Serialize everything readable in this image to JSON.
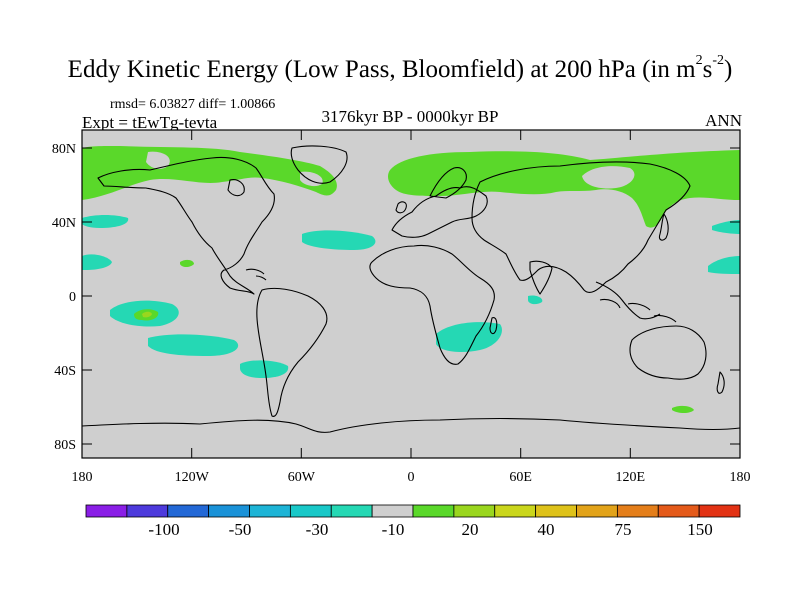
{
  "header": {
    "title_main": "Eddy Kinetic Energy (Low Pass, Bloomfield) at 200 hPa (in m",
    "title_sup1": "2",
    "title_mid": "s",
    "title_sup2": "-2",
    "title_end": ")",
    "stats": "rmsd= 6.03827 diff= 1.00866",
    "experiment": "Expt = tEwTg-tevta",
    "period": "3176kyr BP - 0000kyr BP",
    "season": "ANN"
  },
  "axes": {
    "lat_labels": [
      "80N",
      "40N",
      "0",
      "40S",
      "80S"
    ],
    "lon_labels": [
      "180",
      "120W",
      "60W",
      "0",
      "60E",
      "120E",
      "180"
    ]
  },
  "colorbar": {
    "labels": [
      "-100",
      "-50",
      "-30",
      "-10",
      "20",
      "40",
      "75",
      "150"
    ],
    "colors": [
      "#8a1ee6",
      "#4d3adc",
      "#2368d6",
      "#1a92d8",
      "#1db4d6",
      "#19c8c8",
      "#25d8b4",
      "#cfcfcf",
      "#5ad82a",
      "#9ad61e",
      "#cad61c",
      "#dec21a",
      "#e2a31a",
      "#e47e1a",
      "#e45a1a",
      "#e23214"
    ]
  },
  "legend_colors": {
    "land_background": "#cfcfcf",
    "positive_region": "#5ad82a",
    "negative_region": "#25d8b4",
    "peak_region": "#9ad61e"
  }
}
